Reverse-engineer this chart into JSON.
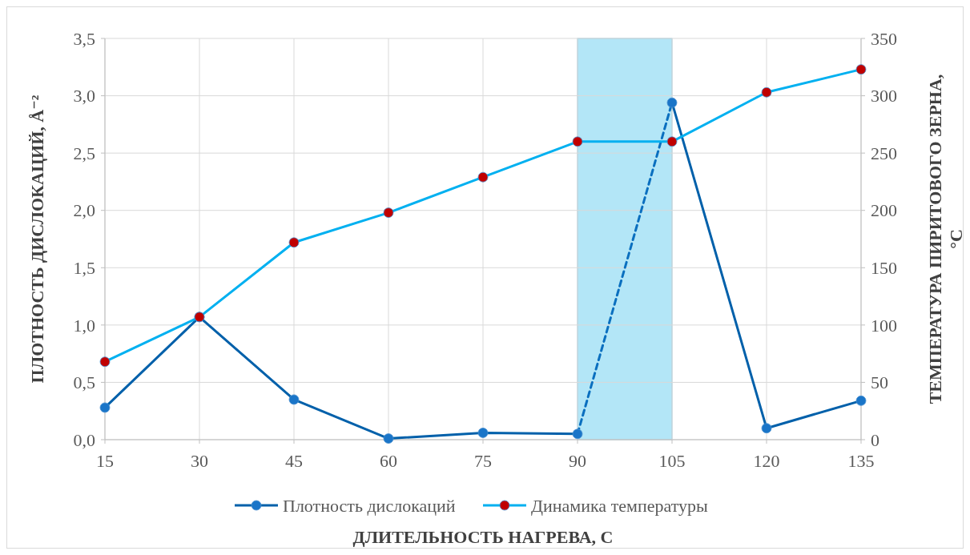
{
  "chart_data": {
    "type": "line",
    "xlabel": "ДЛИТЕЛЬНОСТЬ НАГРЕВА, С",
    "ylabel": "ПЛОТНОСТЬ ДИСЛОКАЦИЙ, Å⁻²",
    "y2label": "ТЕМПЕРАТУРА ПИРИТОВОГО ЗЕРНА, °С",
    "xlim": [
      15,
      135
    ],
    "xticks": [
      15,
      30,
      45,
      60,
      75,
      90,
      105,
      120,
      135
    ],
    "ylim": [
      0,
      3.5
    ],
    "yticks": [
      {
        "value": 0,
        "label": "0,0"
      },
      {
        "value": 0.5,
        "label": "0,5"
      },
      {
        "value": 1,
        "label": "1,0"
      },
      {
        "value": 1.5,
        "label": "1,5"
      },
      {
        "value": 2,
        "label": "2,0"
      },
      {
        "value": 2.5,
        "label": "2,5"
      },
      {
        "value": 3,
        "label": "3,0"
      },
      {
        "value": 3.5,
        "label": "3,5"
      }
    ],
    "y2lim": [
      0,
      350
    ],
    "y2ticks": [
      0,
      50,
      100,
      150,
      200,
      250,
      300,
      350
    ],
    "grid": true,
    "legend": "bottom",
    "marker": "circle",
    "line_style": "solid",
    "bands": [
      {
        "axis": "x",
        "from": 90,
        "to": 105,
        "color": "#b3e6f7"
      }
    ],
    "series": [
      {
        "name": "Плотность дислокаций",
        "color": "#0060aa",
        "colors": [
          "#1a75c8",
          "#1a75c8",
          "#1a75c8",
          "#1a75c8",
          "#1a75c8",
          "#1a75c8"
        ],
        "x": [
          15,
          30,
          45,
          60,
          75,
          90
        ],
        "values": [
          0.28,
          1.07,
          0.35,
          0.01,
          0.06,
          0.05
        ]
      },
      {
        "color": "#0060aa",
        "colors": [
          "#1a75c8",
          "#1a75c8",
          "#1a75c8"
        ],
        "x": [
          105,
          120,
          135
        ],
        "values": [
          2.94,
          0.1,
          0.34
        ]
      },
      {
        "color": "#0a6fbf",
        "x": [
          90,
          105
        ],
        "values": [
          0.05,
          2.94
        ],
        "line_style": "dashed",
        "marker": "none"
      },
      {
        "name": "Динамика температуры",
        "color": "#00b0f0",
        "colors": [
          "#c00000",
          "#c00000",
          "#c00000",
          "#c00000",
          "#c00000",
          "#c00000",
          "#c00000",
          "#c00000",
          "#c00000"
        ],
        "axis": "y2",
        "x": [
          15,
          30,
          45,
          60,
          75,
          90,
          105,
          120,
          135
        ],
        "values": [
          68,
          107,
          172,
          198,
          229,
          260,
          260,
          303,
          323
        ]
      }
    ]
  }
}
